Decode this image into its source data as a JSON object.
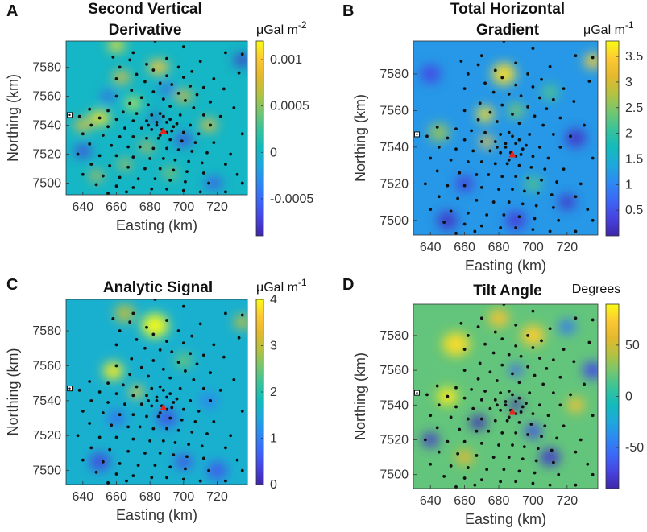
{
  "colormap": [
    "#3e26a8",
    "#4743e1",
    "#3c67f7",
    "#2d89f1",
    "#1ea8dc",
    "#12bbbc",
    "#38c39a",
    "#74c66f",
    "#b3c241",
    "#e4b82e",
    "#fdc832",
    "#f9fb15"
  ],
  "survey_point_color": "#111111",
  "station_color": "#e8261d",
  "chart_data": [
    {
      "type": "heatmap",
      "panel_label": "A",
      "title_lines": [
        "Second Vertical",
        "Derivative"
      ],
      "unit_base": "μGal m",
      "unit_exp": "-2",
      "xlabel": "Easting (km)",
      "ylabel": "Northing (km)",
      "xlim": [
        630,
        738
      ],
      "ylim": [
        7492,
        7598
      ],
      "xticks": [
        640,
        660,
        680,
        700,
        720
      ],
      "yticks": [
        7500,
        7520,
        7540,
        7560,
        7580
      ],
      "colorbar": {
        "min": -0.0009,
        "max": 0.0012,
        "ticks": [
          0.001,
          0.0005,
          0,
          -0.0005
        ],
        "tick_labels": [
          "0.001",
          "0.0005",
          "0",
          "-0.0005"
        ]
      },
      "background_value": 0.0,
      "anomalies": [
        {
          "x": 650,
          "y": 7545,
          "r": 6,
          "v": 0.0011
        },
        {
          "x": 640,
          "y": 7540,
          "r": 5,
          "v": 0.0009
        },
        {
          "x": 663,
          "y": 7573,
          "r": 5,
          "v": 0.0009
        },
        {
          "x": 685,
          "y": 7580,
          "r": 6,
          "v": 0.001
        },
        {
          "x": 660,
          "y": 7595,
          "r": 5,
          "v": 0.0011
        },
        {
          "x": 670,
          "y": 7555,
          "r": 4,
          "v": 0.0012
        },
        {
          "x": 700,
          "y": 7560,
          "r": 5,
          "v": 0.0008
        },
        {
          "x": 715,
          "y": 7540,
          "r": 5,
          "v": 0.0009
        },
        {
          "x": 678,
          "y": 7525,
          "r": 4,
          "v": 0.0008
        },
        {
          "x": 648,
          "y": 7505,
          "r": 4,
          "v": 0.0008
        },
        {
          "x": 665,
          "y": 7513,
          "r": 4,
          "v": 0.0007
        },
        {
          "x": 692,
          "y": 7507,
          "r": 4,
          "v": 0.0006
        },
        {
          "x": 735,
          "y": 7585,
          "r": 5,
          "v": -0.0008
        },
        {
          "x": 640,
          "y": 7522,
          "r": 5,
          "v": -0.0007
        },
        {
          "x": 655,
          "y": 7560,
          "r": 4,
          "v": -0.0006
        },
        {
          "x": 700,
          "y": 7530,
          "r": 5,
          "v": -0.0007
        },
        {
          "x": 718,
          "y": 7500,
          "r": 5,
          "v": -0.0006
        },
        {
          "x": 690,
          "y": 7565,
          "r": 4,
          "v": -0.0006
        },
        {
          "x": 683,
          "y": 7545,
          "r": 3,
          "v": -0.0008
        }
      ]
    },
    {
      "type": "heatmap",
      "panel_label": "B",
      "title_lines": [
        "Total Horizontal",
        "Gradient"
      ],
      "unit_base": "μGal m",
      "unit_exp": "-1",
      "xlabel": "Easting (km)",
      "ylabel": "Northing (km)",
      "xlim": [
        630,
        738
      ],
      "ylim": [
        7492,
        7598
      ],
      "xticks": [
        640,
        660,
        680,
        700,
        720
      ],
      "yticks": [
        7500,
        7520,
        7540,
        7560,
        7580
      ],
      "colorbar": {
        "min": 0.0,
        "max": 3.8,
        "ticks": [
          3.5,
          3,
          2.5,
          2,
          1.5,
          1,
          0.5
        ],
        "tick_labels": [
          "3.5",
          "3",
          "2.5",
          "2",
          "1.5",
          "1",
          "0.5"
        ]
      },
      "background_value": 1.2,
      "anomalies": [
        {
          "x": 683,
          "y": 7580,
          "r": 7,
          "v": 3.6
        },
        {
          "x": 672,
          "y": 7558,
          "r": 5,
          "v": 3.6
        },
        {
          "x": 673,
          "y": 7543,
          "r": 4,
          "v": 3.4
        },
        {
          "x": 735,
          "y": 7587,
          "r": 5,
          "v": 3.5
        },
        {
          "x": 645,
          "y": 7548,
          "r": 6,
          "v": 2.6
        },
        {
          "x": 690,
          "y": 7560,
          "r": 5,
          "v": 2.4
        },
        {
          "x": 710,
          "y": 7570,
          "r": 5,
          "v": 2.2
        },
        {
          "x": 700,
          "y": 7520,
          "r": 5,
          "v": 2.2
        },
        {
          "x": 725,
          "y": 7545,
          "r": 6,
          "v": 0.2
        },
        {
          "x": 650,
          "y": 7500,
          "r": 6,
          "v": 0.2
        },
        {
          "x": 690,
          "y": 7500,
          "r": 6,
          "v": 0.3
        },
        {
          "x": 640,
          "y": 7580,
          "r": 6,
          "v": 0.4
        },
        {
          "x": 660,
          "y": 7520,
          "r": 5,
          "v": 0.3
        },
        {
          "x": 720,
          "y": 7510,
          "r": 5,
          "v": 0.2
        }
      ]
    },
    {
      "type": "heatmap",
      "panel_label": "C",
      "title_lines": [
        "Analytic Signal"
      ],
      "unit_base": "μGal m",
      "unit_exp": "-1",
      "xlabel": "Easting (km)",
      "ylabel": "Northing (km)",
      "xlim": [
        630,
        738
      ],
      "ylim": [
        7492,
        7598
      ],
      "xticks": [
        640,
        660,
        680,
        700,
        720
      ],
      "yticks": [
        7500,
        7520,
        7540,
        7560,
        7580
      ],
      "colorbar": {
        "min": 0,
        "max": 4,
        "ticks": [
          4,
          3,
          2,
          1,
          0
        ],
        "tick_labels": [
          "4",
          "3",
          "2",
          "1",
          "0"
        ]
      },
      "background_value": 1.6,
      "anomalies": [
        {
          "x": 683,
          "y": 7583,
          "r": 8,
          "v": 4.0
        },
        {
          "x": 658,
          "y": 7557,
          "r": 6,
          "v": 3.9
        },
        {
          "x": 672,
          "y": 7545,
          "r": 4,
          "v": 3.7
        },
        {
          "x": 665,
          "y": 7590,
          "r": 6,
          "v": 3.0
        },
        {
          "x": 735,
          "y": 7585,
          "r": 5,
          "v": 3.0
        },
        {
          "x": 700,
          "y": 7563,
          "r": 5,
          "v": 2.5
        },
        {
          "x": 690,
          "y": 7530,
          "r": 6,
          "v": 0.5
        },
        {
          "x": 650,
          "y": 7505,
          "r": 6,
          "v": 0.4
        },
        {
          "x": 720,
          "y": 7500,
          "r": 6,
          "v": 0.6
        },
        {
          "x": 700,
          "y": 7505,
          "r": 5,
          "v": 0.5
        },
        {
          "x": 660,
          "y": 7530,
          "r": 5,
          "v": 0.8
        },
        {
          "x": 715,
          "y": 7540,
          "r": 5,
          "v": 1.0
        }
      ]
    },
    {
      "type": "heatmap",
      "panel_label": "D",
      "title_lines": [
        "Tilt Angle"
      ],
      "unit_base": "Degrees",
      "unit_exp": "",
      "xlabel": "Easting (km)",
      "ylabel": "Northing (km)",
      "xlim": [
        630,
        738
      ],
      "ylim": [
        7492,
        7598
      ],
      "xticks": [
        640,
        660,
        680,
        700,
        720
      ],
      "yticks": [
        7500,
        7520,
        7540,
        7560,
        7580
      ],
      "colorbar": {
        "min": -90,
        "max": 90,
        "ticks": [
          50,
          0,
          -50
        ],
        "tick_labels": [
          "50",
          "0",
          "-50"
        ]
      },
      "background_value": 20,
      "anomalies": [
        {
          "x": 655,
          "y": 7575,
          "r": 8,
          "v": 80
        },
        {
          "x": 650,
          "y": 7545,
          "r": 6,
          "v": 85
        },
        {
          "x": 700,
          "y": 7580,
          "r": 7,
          "v": 75
        },
        {
          "x": 725,
          "y": 7540,
          "r": 5,
          "v": 70
        },
        {
          "x": 680,
          "y": 7590,
          "r": 6,
          "v": 70
        },
        {
          "x": 660,
          "y": 7510,
          "r": 5,
          "v": 60
        },
        {
          "x": 640,
          "y": 7520,
          "r": 5,
          "v": -80
        },
        {
          "x": 668,
          "y": 7530,
          "r": 5,
          "v": -85
        },
        {
          "x": 710,
          "y": 7510,
          "r": 6,
          "v": -80
        },
        {
          "x": 735,
          "y": 7560,
          "r": 6,
          "v": -70
        },
        {
          "x": 690,
          "y": 7540,
          "r": 4,
          "v": -85
        },
        {
          "x": 690,
          "y": 7560,
          "r": 4,
          "v": -60
        },
        {
          "x": 700,
          "y": 7525,
          "r": 5,
          "v": -70
        },
        {
          "x": 720,
          "y": 7585,
          "r": 5,
          "v": -50
        }
      ]
    }
  ],
  "survey_points": [
    [
      683,
      7598
    ],
    [
      700,
      7594
    ],
    [
      670,
      7590
    ],
    [
      725,
      7590
    ],
    [
      735,
      7589
    ],
    [
      658,
      7587
    ],
    [
      690,
      7586
    ],
    [
      668,
      7585
    ],
    [
      710,
      7584
    ],
    [
      678,
      7582
    ],
    [
      662,
      7580
    ],
    [
      697,
      7580
    ],
    [
      682,
      7578
    ],
    [
      705,
      7577
    ],
    [
      733,
      7576
    ],
    [
      672,
      7575
    ],
    [
      690,
      7574
    ],
    [
      700,
      7573
    ],
    [
      718,
      7572
    ],
    [
      660,
      7572
    ],
    [
      677,
      7570
    ],
    [
      686,
      7569
    ],
    [
      693,
      7568
    ],
    [
      704,
      7567
    ],
    [
      712,
      7566
    ],
    [
      724,
      7565
    ],
    [
      669,
      7564
    ],
    [
      682,
      7563
    ],
    [
      697,
      7562
    ],
    [
      708,
      7561
    ],
    [
      660,
      7560
    ],
    [
      675,
      7559
    ],
    [
      688,
      7558
    ],
    [
      701,
      7557
    ],
    [
      716,
      7556
    ],
    [
      668,
      7555
    ],
    [
      679,
      7554
    ],
    [
      692,
      7553
    ],
    [
      706,
      7552
    ],
    [
      730,
      7552
    ],
    [
      644,
      7551
    ],
    [
      655,
      7550
    ],
    [
      664,
      7549
    ],
    [
      672,
      7548
    ],
    [
      686,
      7548
    ],
    [
      698,
      7547
    ],
    [
      712,
      7547
    ],
    [
      722,
      7546
    ],
    [
      638,
      7546
    ],
    [
      650,
      7545
    ],
    [
      660,
      7544
    ],
    [
      670,
      7543
    ],
    [
      678,
      7543
    ],
    [
      684,
      7542
    ],
    [
      690,
      7542
    ],
    [
      696,
      7541
    ],
    [
      704,
      7540
    ],
    [
      716,
      7540
    ],
    [
      645,
      7540
    ],
    [
      655,
      7539
    ],
    [
      665,
      7538
    ],
    [
      675,
      7538
    ],
    [
      681,
      7537
    ],
    [
      687,
      7537
    ],
    [
      693,
      7536
    ],
    [
      700,
      7535
    ],
    [
      709,
      7534
    ],
    [
      735,
      7534
    ],
    [
      640,
      7534
    ],
    [
      652,
      7533
    ],
    [
      662,
      7532
    ],
    [
      670,
      7532
    ],
    [
      678,
      7531
    ],
    [
      685,
      7531
    ],
    [
      692,
      7530
    ],
    [
      699,
      7529
    ],
    [
      707,
      7528
    ],
    [
      718,
      7528
    ],
    [
      644,
      7527
    ],
    [
      657,
      7526
    ],
    [
      667,
      7525
    ],
    [
      674,
      7525
    ],
    [
      682,
      7524
    ],
    [
      690,
      7524
    ],
    [
      697,
      7523
    ],
    [
      705,
      7522
    ],
    [
      714,
      7521
    ],
    [
      728,
      7520
    ],
    [
      637,
      7520
    ],
    [
      650,
      7519
    ],
    [
      660,
      7519
    ],
    [
      670,
      7518
    ],
    [
      680,
      7517
    ],
    [
      688,
      7517
    ],
    [
      695,
      7516
    ],
    [
      703,
      7515
    ],
    [
      711,
      7514
    ],
    [
      725,
      7513
    ],
    [
      645,
      7513
    ],
    [
      656,
      7512
    ],
    [
      667,
      7511
    ],
    [
      677,
      7510
    ],
    [
      686,
      7510
    ],
    [
      694,
      7509
    ],
    [
      702,
      7508
    ],
    [
      712,
      7507
    ],
    [
      732,
      7506
    ],
    [
      640,
      7506
    ],
    [
      652,
      7505
    ],
    [
      662,
      7504
    ],
    [
      673,
      7503
    ],
    [
      683,
      7503
    ],
    [
      692,
      7502
    ],
    [
      701,
      7501
    ],
    [
      715,
      7500
    ],
    [
      735,
      7500
    ],
    [
      648,
      7499
    ],
    [
      660,
      7498
    ],
    [
      670,
      7497
    ],
    [
      681,
      7496
    ],
    [
      690,
      7496
    ],
    [
      700,
      7495
    ],
    [
      710,
      7494
    ],
    [
      725,
      7494
    ],
    [
      655,
      7493
    ],
    [
      666,
      7494
    ],
    [
      688,
      7546
    ],
    [
      684,
      7540
    ],
    [
      690,
      7535
    ],
    [
      679,
      7540
    ],
    [
      692,
      7544
    ],
    [
      686,
      7533
    ],
    [
      681,
      7547
    ],
    [
      694,
      7539
    ]
  ],
  "station_point": [
    688,
    7536
  ]
}
